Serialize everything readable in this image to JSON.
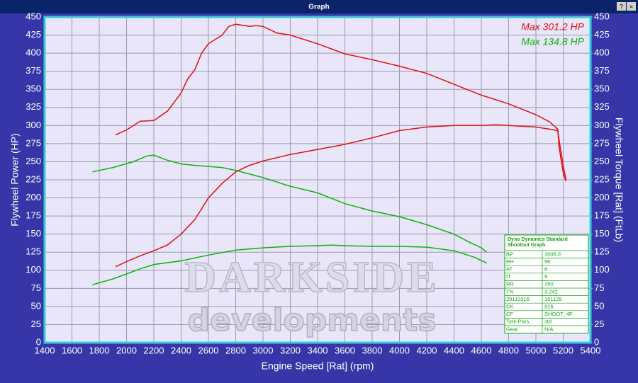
{
  "window_title": "Graph",
  "chart_data": {
    "type": "line",
    "xlabel": "Engine Speed [Rat] (rpm)",
    "ylabel": "Flywheel Power (HP)",
    "y2label": "Flywheel Torque [Rat] (FtLb)",
    "xlim": [
      1400,
      5400
    ],
    "xticks": [
      1400,
      1600,
      1800,
      2000,
      2200,
      2400,
      2600,
      2800,
      3000,
      3200,
      3400,
      3600,
      3800,
      4000,
      4200,
      4400,
      4600,
      4800,
      5000,
      5200,
      5400
    ],
    "ylim": [
      0,
      450
    ],
    "yticks": [
      0,
      25,
      50,
      75,
      100,
      125,
      150,
      175,
      200,
      225,
      250,
      275,
      300,
      325,
      350,
      375,
      400,
      425,
      450
    ],
    "y2lim": [
      0,
      450
    ],
    "y2ticks": [
      0,
      25,
      50,
      75,
      100,
      125,
      150,
      175,
      200,
      225,
      250,
      275,
      300,
      325,
      350,
      375,
      400,
      425,
      450
    ],
    "grid": true,
    "series": [
      {
        "color": "#e01010",
        "x": [
          1920,
          2000,
          2100,
          2200,
          2300,
          2400,
          2500,
          2600,
          2700,
          2800,
          2900,
          3000,
          3200,
          3400,
          3600,
          3800,
          4000,
          4200,
          4400,
          4600,
          4700,
          4800,
          5000,
          5100,
          5160,
          5170,
          5200,
          5220
        ],
        "values": [
          105,
          112,
          120,
          127,
          135,
          150,
          170,
          200,
          220,
          236,
          245,
          251,
          260,
          267,
          274,
          283,
          293,
          298,
          300,
          300,
          301,
          300,
          298,
          295,
          293,
          280,
          245,
          225
        ]
      },
      {
        "color": "#e01010",
        "axis": "y2",
        "x": [
          1920,
          2000,
          2100,
          2200,
          2300,
          2400,
          2450,
          2500,
          2550,
          2600,
          2700,
          2750,
          2800,
          2900,
          2950,
          3000,
          3100,
          3200,
          3400,
          3600,
          3800,
          4000,
          4200,
          4400,
          4600,
          4800,
          5000,
          5100,
          5160,
          5170,
          5200,
          5220
        ],
        "values": [
          287,
          294,
          306,
          307,
          320,
          345,
          365,
          377,
          400,
          413,
          425,
          437,
          440,
          437,
          438,
          437,
          428,
          425,
          413,
          399,
          391,
          382,
          372,
          357,
          342,
          330,
          315,
          305,
          295,
          270,
          235,
          223
        ]
      },
      {
        "color": "#10b010",
        "x": [
          1750,
          1900,
          2100,
          2200,
          2400,
          2600,
          2800,
          3000,
          3200,
          3400,
          3500,
          3600,
          3800,
          4000,
          4200,
          4400,
          4550,
          4640
        ],
        "values": [
          80,
          88,
          102,
          108,
          113,
          121,
          128,
          131,
          133,
          134,
          134.8,
          134,
          133,
          133,
          132,
          127,
          118,
          110
        ]
      },
      {
        "color": "#10b010",
        "axis": "y2",
        "x": [
          1750,
          1900,
          2050,
          2150,
          2200,
          2300,
          2400,
          2500,
          2700,
          2800,
          3000,
          3200,
          3400,
          3600,
          3800,
          4000,
          4200,
          4400,
          4500,
          4600,
          4640
        ],
        "values": [
          236,
          242,
          250,
          258,
          259,
          252,
          247,
          245,
          242,
          238,
          228,
          216,
          207,
          192,
          182,
          174,
          163,
          150,
          140,
          131,
          125
        ]
      }
    ],
    "annotations": [
      {
        "text": "Max 301.2 HP",
        "color": "#e01010"
      },
      {
        "text": "Max 134.8 HP",
        "color": "#10b010"
      }
    ],
    "watermark": [
      "DARKSIDE",
      "developments"
    ],
    "info_table": {
      "title": [
        "Dyno Dynamics Standard",
        "Shootout Graph."
      ],
      "rows": [
        [
          "BP",
          "1006.0"
        ],
        [
          "RH",
          "96"
        ],
        [
          "AT",
          "8"
        ],
        [
          "IT",
          "9"
        ],
        [
          "RR",
          "150"
        ],
        [
          "TN",
          "3.242"
        ],
        [
          "20110316",
          "161129"
        ],
        [
          "CK",
          "916"
        ],
        [
          "CF",
          "SHOOT_4F"
        ],
        [
          "Tyre Pres.",
          "std"
        ],
        [
          "Gear",
          "N/A"
        ]
      ]
    }
  }
}
